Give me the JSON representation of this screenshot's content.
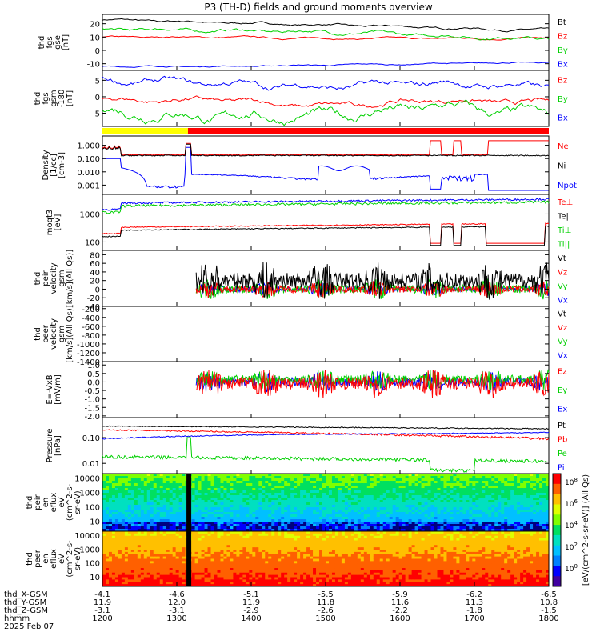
{
  "title": "P3 (TH-D) fields and ground moments overview",
  "colors": {
    "black": "#000000",
    "red": "#ff0000",
    "green": "#00d000",
    "blue": "#0000ff",
    "yellow": "#ffff00"
  },
  "chart_data": [
    {
      "type": "line",
      "id": "fgs",
      "ylabel": [
        "thd",
        "fgs",
        "gse",
        "[nT]"
      ],
      "ylim": [
        -15,
        27
      ],
      "yticks": [
        20,
        10,
        0,
        -10
      ],
      "series": [
        {
          "name": "Bt",
          "color": "#000000",
          "level": [
            23,
            21,
            19,
            17,
            15
          ],
          "noise": 0.8
        },
        {
          "name": "Bz",
          "color": "#ff0000",
          "level": [
            10,
            10,
            9,
            9,
            9
          ],
          "noise": 0.6
        },
        {
          "name": "By",
          "color": "#00d000",
          "level": [
            16,
            15,
            14,
            11,
            9
          ],
          "noise": 1.2
        },
        {
          "name": "Bx",
          "color": "#0000ff",
          "level": [
            -12,
            -12,
            -11,
            -10,
            -9
          ],
          "noise": 0.5
        }
      ]
    },
    {
      "type": "line",
      "id": "fgs_gsm",
      "ylabel": [
        "thd",
        "fgs",
        "gsm",
        "-180",
        "[nT]"
      ],
      "ylim": [
        -9,
        8
      ],
      "yticks": [
        5,
        0,
        -5
      ],
      "series": [
        {
          "name": "Bz",
          "color": "#ff0000",
          "level": [
            -1,
            -1,
            -3,
            -1,
            -2
          ],
          "noise": 0.8
        },
        {
          "name": "By",
          "color": "#00d000",
          "level": [
            -4,
            -6,
            -6,
            -3,
            -6
          ],
          "noise": 1.5
        },
        {
          "name": "Bx",
          "color": "#0000ff",
          "level": [
            5,
            4,
            3,
            4,
            3
          ],
          "noise": 1.0
        }
      ]
    },
    {
      "type": "bar",
      "id": "mode",
      "segments": [
        {
          "x0": 1200,
          "x1": 1315,
          "color": "#ffff00"
        },
        {
          "x0": 1315,
          "x1": 1800,
          "color": "#ff0000"
        }
      ]
    },
    {
      "type": "line",
      "id": "density",
      "ylabel": [
        "Density",
        "[1/cc]",
        "[cm-3]"
      ],
      "log": true,
      "ylim": [
        0.0002,
        5
      ],
      "yticks": [
        "1.000",
        "0.100",
        "0.010",
        "0.001"
      ],
      "series": [
        {
          "name": "Ne",
          "color": "#ff0000"
        },
        {
          "name": "Ni",
          "color": "#000000"
        },
        {
          "name": "Npot",
          "color": "#0000ff"
        }
      ]
    },
    {
      "type": "line",
      "id": "temp",
      "ylabel": [
        "moqt3",
        "[eV]"
      ],
      "log": true,
      "ylim": [
        50,
        5000
      ],
      "yticks": [
        "1000",
        "100"
      ],
      "series": [
        {
          "name": "Te⊥",
          "color": "#ff0000"
        },
        {
          "name": "Te||",
          "color": "#000000"
        },
        {
          "name": "Ti⊥",
          "color": "#00d000"
        },
        {
          "name": "Ti||",
          "color": "#00d000"
        }
      ]
    },
    {
      "type": "line",
      "id": "peir",
      "ylabel": [
        "thd",
        "peir",
        "velocity",
        "gsm",
        "[km/s](All Qs)]"
      ],
      "ylim": [
        -40,
        90
      ],
      "yticks": [
        80,
        60,
        40,
        20,
        0,
        -20,
        -40
      ],
      "series": [
        {
          "name": "Vt",
          "color": "#000000"
        },
        {
          "name": "Vz",
          "color": "#ff0000"
        },
        {
          "name": "Vy",
          "color": "#00d000"
        },
        {
          "name": "Vx",
          "color": "#0000ff"
        }
      ]
    },
    {
      "type": "line",
      "id": "peer",
      "ylabel": [
        "thd",
        "peer",
        "velocity",
        "gsm",
        "[km/s](All Qs)]"
      ],
      "ylim": [
        -1400,
        -150
      ],
      "yticks": [
        -200,
        -400,
        -600,
        -800,
        -1000,
        -1200,
        -1400
      ],
      "series": [
        {
          "name": "Vt",
          "color": "#000000"
        },
        {
          "name": "Vz",
          "color": "#ff0000"
        },
        {
          "name": "Vy",
          "color": "#00d000"
        },
        {
          "name": "Vx",
          "color": "#0000ff"
        }
      ]
    },
    {
      "type": "line",
      "id": "efield",
      "ylabel": [
        "E=-VxB",
        "[mV/m]"
      ],
      "ylim": [
        -2.1,
        1.2
      ],
      "yticks": [
        "1.0",
        "0.5",
        "0.0",
        "-0.5",
        "-1.0",
        "-1.5",
        "-2.0"
      ],
      "series": [
        {
          "name": "Ez",
          "color": "#ff0000"
        },
        {
          "name": "Ey",
          "color": "#00d000"
        },
        {
          "name": "Ex",
          "color": "#0000ff"
        }
      ]
    },
    {
      "type": "line",
      "id": "pressure",
      "ylabel": [
        "Pressure",
        "[nPa]"
      ],
      "log": true,
      "ylim": [
        0.004,
        0.6
      ],
      "yticks": [
        "0.10",
        "0.01"
      ],
      "series": [
        {
          "name": "Pt",
          "color": "#000000"
        },
        {
          "name": "Pb",
          "color": "#ff0000"
        },
        {
          "name": "Pe",
          "color": "#00d000"
        },
        {
          "name": "Pi",
          "color": "#0000ff"
        }
      ]
    },
    {
      "type": "heatmap",
      "id": "peir_en",
      "ylabel": [
        "thd",
        "peir",
        "en",
        "eflux",
        "eV",
        "(cm^2-s-",
        "sr-eV)"
      ],
      "yticks": [
        "10000",
        "1000",
        "100",
        "10"
      ]
    },
    {
      "type": "heatmap",
      "id": "peer_en",
      "ylabel": [
        "thd",
        "peer",
        "en",
        "eflux",
        "eV",
        "(cm^2-s-",
        "sr-eV)"
      ],
      "yticks": [
        "10000",
        "1000",
        "100",
        "10"
      ]
    }
  ],
  "colorbar": {
    "label": "[eV/(cm^2-s-sr-eV)] (All Qs)",
    "ticks": [
      "10^8",
      "10^6",
      "10^4",
      "10^2",
      "10^0"
    ]
  },
  "xaxis": {
    "tick_positions": [
      1200,
      1300,
      1400,
      1500,
      1600,
      1700,
      1800
    ],
    "rows": [
      {
        "label": "thd_X-GSM",
        "values": [
          "-4.1",
          "-4.6",
          "-5.1",
          "-5.5",
          "-5.9",
          "-6.2",
          "-6.5"
        ]
      },
      {
        "label": "thd_Y-GSM",
        "values": [
          "11.9",
          "12.0",
          "11.9",
          "11.8",
          "11.6",
          "11.3",
          "10.8"
        ]
      },
      {
        "label": "thd_Z-GSM",
        "values": [
          "-3.1",
          "-3.1",
          "-2.9",
          "-2.6",
          "-2.2",
          "-1.8",
          "-1.5"
        ]
      },
      {
        "label": "hhmm",
        "values": [
          "1200",
          "1300",
          "1400",
          "1500",
          "1600",
          "1700",
          "1800"
        ]
      }
    ],
    "date": "2025 Feb 07"
  }
}
